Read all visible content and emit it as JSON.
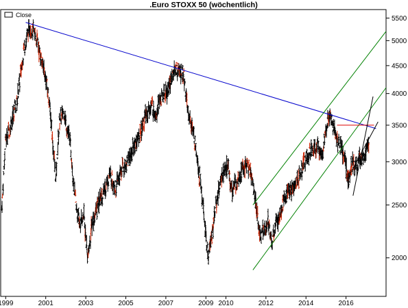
{
  "chart_data": {
    "type": "line",
    "title": ".Euro STOXX 50 (wöchentlich)",
    "xlabel": "",
    "ylabel": "",
    "y_scale": "log",
    "ylim": [
      1700,
      5700
    ],
    "xlim": [
      1998.75,
      2018.0
    ],
    "grid": false,
    "legend_placement": "top-left",
    "x_tick_labels": [
      "1999",
      "2001",
      "2003",
      "2005",
      "2007",
      "2009",
      "2010",
      "2012",
      "2014",
      "2016"
    ],
    "x_tick_values": [
      1999.0,
      2001.0,
      2003.0,
      2005.0,
      2007.0,
      2009.0,
      2010.0,
      2012.0,
      2014.0,
      2016.0
    ],
    "y_tick_labels": [
      "5500",
      "5000",
      "4500",
      "4000",
      "3500",
      "3000",
      "2500",
      "2000"
    ],
    "y_tick_values": [
      5500,
      5000,
      4500,
      4000,
      3500,
      3000,
      2500,
      2000
    ],
    "series": [
      {
        "name": "Close",
        "color": "#000000",
        "x": [
          1998.8,
          1999.0,
          1999.3,
          1999.6,
          1999.9,
          2000.2,
          2000.5,
          2000.8,
          2001.0,
          2001.2,
          2001.5,
          2001.7,
          2001.9,
          2002.2,
          2002.5,
          2002.7,
          2002.9,
          2003.1,
          2003.3,
          2003.6,
          2003.9,
          2004.2,
          2004.5,
          2004.8,
          2005.1,
          2005.4,
          2005.7,
          2006.0,
          2006.3,
          2006.5,
          2006.8,
          2007.1,
          2007.3,
          2007.5,
          2007.7,
          2007.9,
          2008.1,
          2008.3,
          2008.5,
          2008.7,
          2008.9,
          2009.1,
          2009.3,
          2009.5,
          2009.8,
          2010.1,
          2010.3,
          2010.5,
          2010.8,
          2011.0,
          2011.2,
          2011.45,
          2011.7,
          2011.9,
          2012.1,
          2012.3,
          2012.5,
          2012.8,
          2013.1,
          2013.4,
          2013.7,
          2014.0,
          2014.3,
          2014.6,
          2014.8,
          2015.05,
          2015.2,
          2015.35,
          2015.55,
          2015.75,
          2015.95,
          2016.1,
          2016.3,
          2016.5,
          2016.7,
          2016.9,
          2017.15
        ],
        "values": [
          2450,
          3300,
          3550,
          3950,
          4800,
          5300,
          5100,
          4600,
          4300,
          3800,
          2800,
          3600,
          3700,
          3300,
          2500,
          2300,
          2400,
          2000,
          2300,
          2500,
          2650,
          2850,
          2700,
          2900,
          3000,
          3200,
          3350,
          3650,
          3800,
          3700,
          3950,
          4050,
          4300,
          4450,
          4400,
          4300,
          3700,
          3500,
          3200,
          2800,
          2400,
          2000,
          2200,
          2500,
          2850,
          2950,
          2650,
          2750,
          2900,
          2950,
          2900,
          2600,
          2200,
          2250,
          2350,
          2150,
          2300,
          2500,
          2650,
          2700,
          2850,
          3050,
          3150,
          3200,
          3100,
          3500,
          3650,
          3500,
          3300,
          3200,
          3000,
          2800,
          3000,
          2950,
          3050,
          3100,
          3250
        ]
      }
    ],
    "trendlines": [
      {
        "kind": "resistance",
        "color": "#0000cc",
        "x": [
          2000.0,
          2017.5
        ],
        "values": [
          5400,
          3450
        ]
      },
      {
        "kind": "channel-upper",
        "color": "#008000",
        "x": [
          2011.35,
          2018.0
        ],
        "values": [
          2500,
          5200
        ]
      },
      {
        "kind": "channel-lower",
        "color": "#008000",
        "x": [
          2011.35,
          2018.0
        ],
        "values": [
          1900,
          4100
        ]
      },
      {
        "kind": "horizontal-resistance",
        "color": "#dd0000",
        "x": [
          2015.55,
          2017.4
        ],
        "values": [
          3500,
          3500
        ]
      },
      {
        "kind": "short-trend",
        "color": "#000000",
        "x": [
          2016.2,
          2017.6
        ],
        "values": [
          2850,
          3550
        ]
      },
      {
        "kind": "short-trend",
        "color": "#000000",
        "x": [
          2016.35,
          2017.35
        ],
        "values": [
          2600,
          3950
        ]
      }
    ],
    "colors": {
      "ohlc_bar": "#000000",
      "ohlc_accent": "#cc2200",
      "background": "#ffffff",
      "frame": "#000000"
    }
  }
}
